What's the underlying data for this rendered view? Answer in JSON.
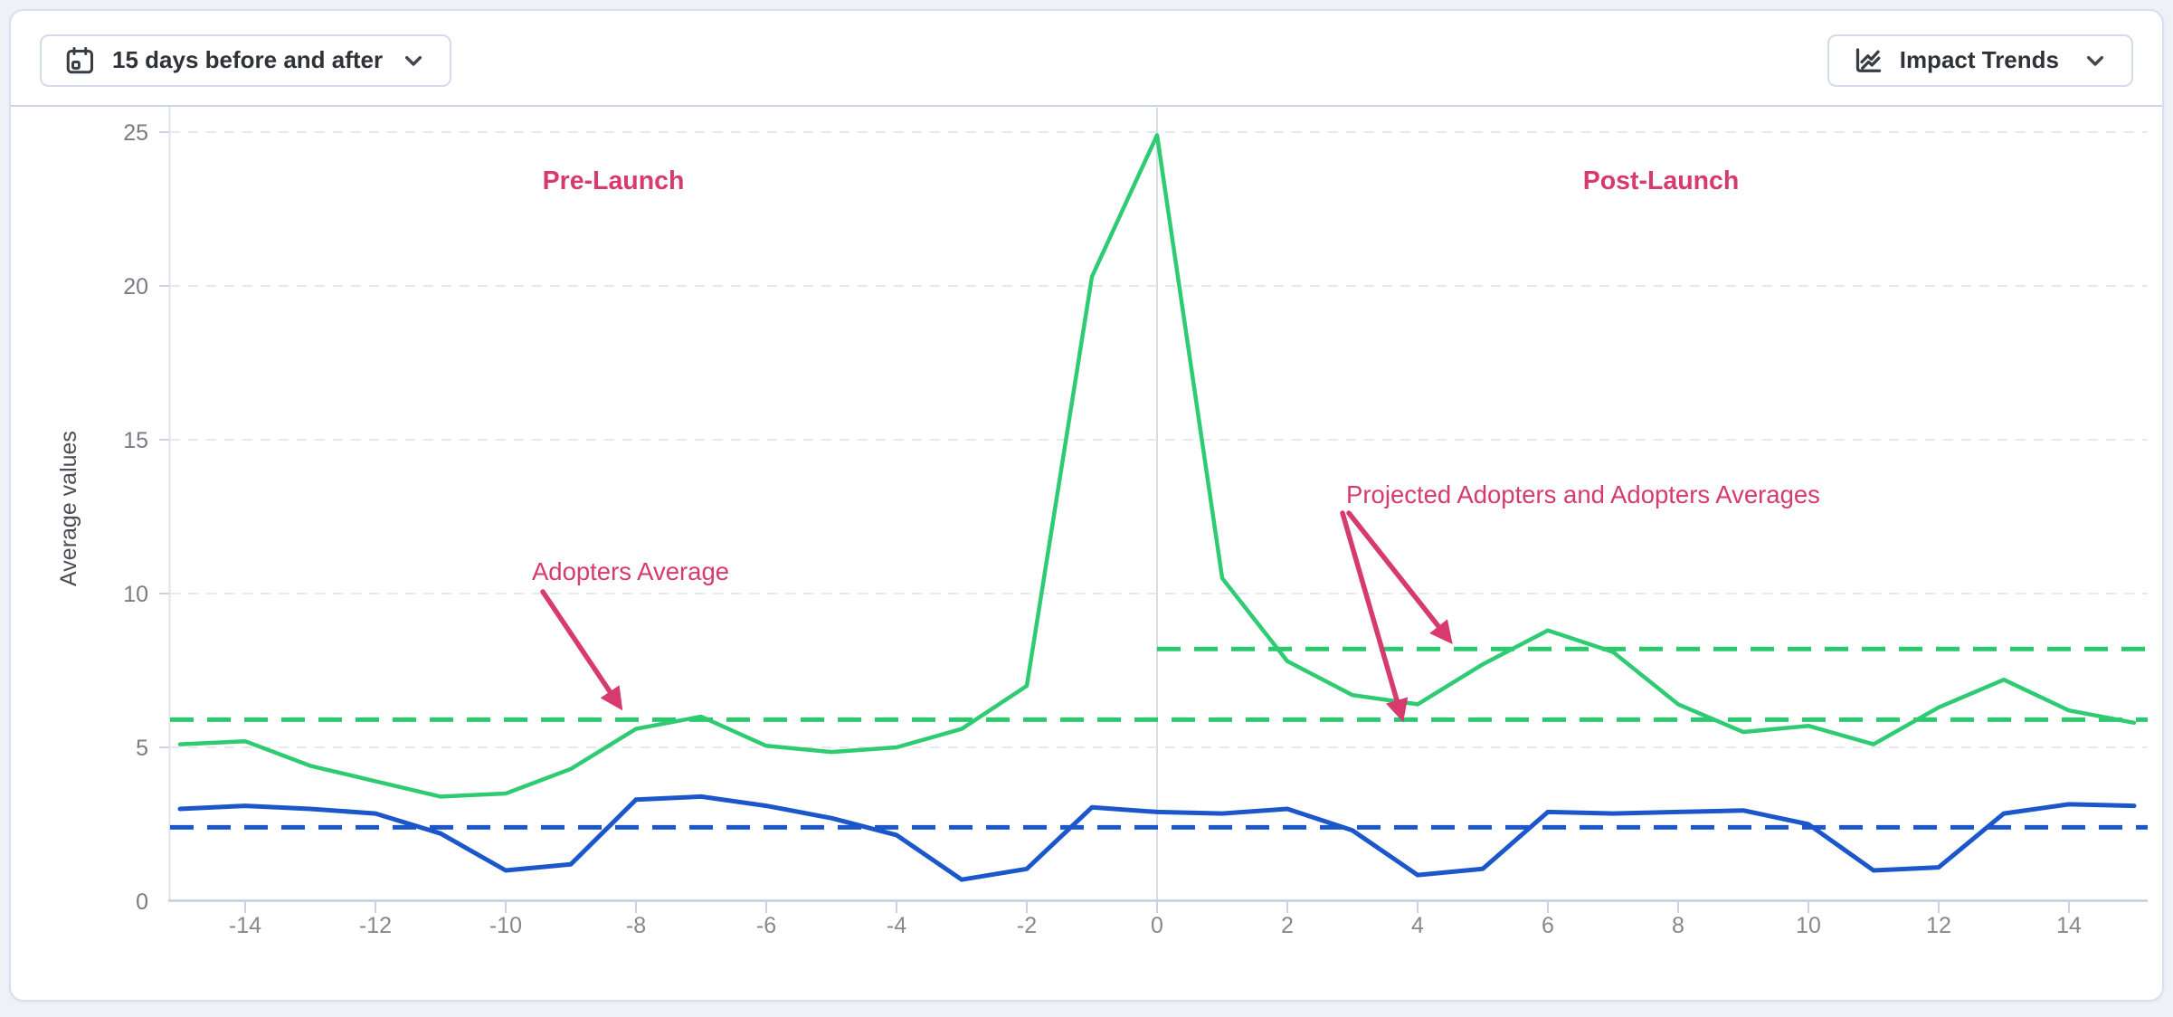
{
  "header": {
    "range_button": {
      "label": "15 days before and after"
    },
    "trends_button": {
      "label": "Impact Trends"
    }
  },
  "chart_data": {
    "type": "line",
    "title": "",
    "xlabel": "",
    "ylabel": "Average values",
    "xlim": [
      -15,
      15
    ],
    "ylim": [
      0,
      25
    ],
    "x_ticks": [
      -14,
      -12,
      -10,
      -8,
      -6,
      -4,
      -2,
      0,
      2,
      4,
      6,
      8,
      10,
      12,
      14
    ],
    "y_ticks": [
      0,
      5,
      10,
      15,
      20,
      25
    ],
    "grid": "horizontal-dashed",
    "event_line_x": 0,
    "x": [
      -15,
      -14,
      -13,
      -12,
      -11,
      -10,
      -9,
      -8,
      -7,
      -6,
      -5,
      -4,
      -3,
      -2,
      -1,
      0,
      1,
      2,
      3,
      4,
      5,
      6,
      7,
      8,
      9,
      10,
      11,
      12,
      13,
      14,
      15
    ],
    "series": [
      {
        "name": "Adopters",
        "color": "#2fcb72",
        "style": "solid",
        "values": [
          5.1,
          5.2,
          4.4,
          3.9,
          3.4,
          3.5,
          4.3,
          5.6,
          6.0,
          5.05,
          4.85,
          5.0,
          5.6,
          7.0,
          20.3,
          24.9,
          10.5,
          7.8,
          6.7,
          6.4,
          7.7,
          8.8,
          8.1,
          6.4,
          5.5,
          5.7,
          5.1,
          6.3,
          7.2,
          6.2,
          5.8
        ]
      },
      {
        "name": "Projected Adopters",
        "color": "#1b57cb",
        "style": "solid",
        "values": [
          3.0,
          3.1,
          3.0,
          2.85,
          2.2,
          1.0,
          1.2,
          3.3,
          3.4,
          3.1,
          2.7,
          2.15,
          0.7,
          1.05,
          3.05,
          2.9,
          2.85,
          3.0,
          2.3,
          0.85,
          1.05,
          2.9,
          2.85,
          2.9,
          2.95,
          2.5,
          1.0,
          1.1,
          2.85,
          3.15,
          3.1
        ]
      }
    ],
    "average_lines": [
      {
        "name": "adopters-average",
        "value": 5.9,
        "color": "#2bc96d",
        "style": "dashed",
        "from": -15,
        "to": 15
      },
      {
        "name": "post-launch-adopters-average",
        "value": 8.2,
        "color": "#2bc96d",
        "style": "dashed",
        "from": 0,
        "to": 15
      },
      {
        "name": "projected-adopters-average",
        "value": 2.4,
        "color": "#1b57cb",
        "style": "dashed",
        "from": -15,
        "to": 15
      }
    ],
    "annotations": {
      "color": "#d63a6f",
      "pre_launch": "Pre-Launch",
      "post_launch": "Post-Launch",
      "adopters_average": "Adopters Average",
      "projected_adopters": "Projected Adopters and Adopters Averages"
    }
  }
}
